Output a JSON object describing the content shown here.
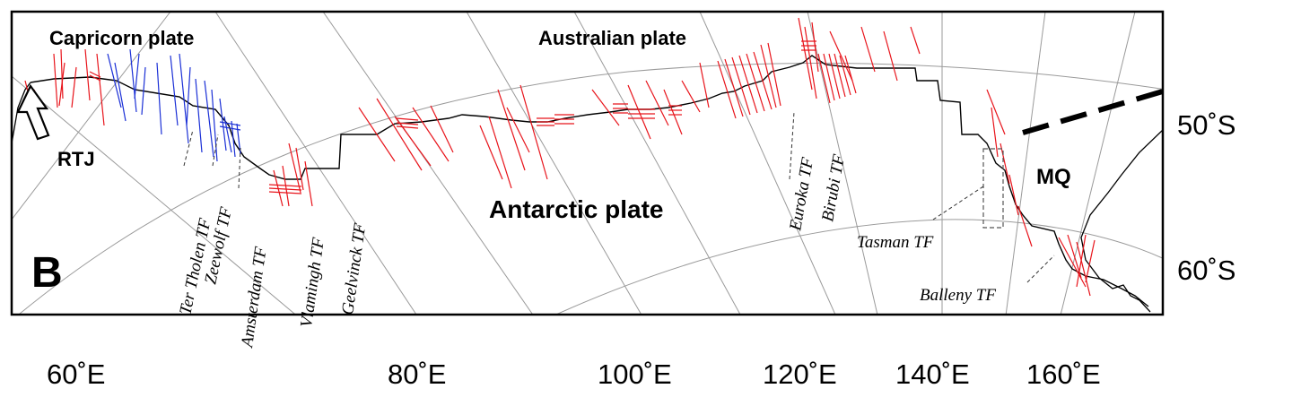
{
  "panel_letter": "B",
  "plates": {
    "capricorn": "Capricorn plate",
    "australian": "Australian plate",
    "antarctic": "Antarctic plate"
  },
  "features": {
    "rtj": "RTJ",
    "mq": "MQ"
  },
  "transform_faults": [
    "Ter Tholen TF",
    "Zeewolf TF",
    "Amsterdam TF",
    "Vlamingh TF",
    "Geelvinck TF",
    "Euroka TF",
    "Birubi TF",
    "Tasman TF",
    "Balleny TF"
  ],
  "longitude_labels": [
    "60˚E",
    "80˚E",
    "100˚E",
    "120˚E",
    "140˚E",
    "160˚E"
  ],
  "latitude_labels": [
    "50˚S",
    "60˚S"
  ],
  "colors": {
    "frame": "#000000",
    "ridge": "#000000",
    "graticule": "#9a9a9a",
    "red_segments": "#e8141b",
    "blue_segments": "#1a2fd6"
  }
}
